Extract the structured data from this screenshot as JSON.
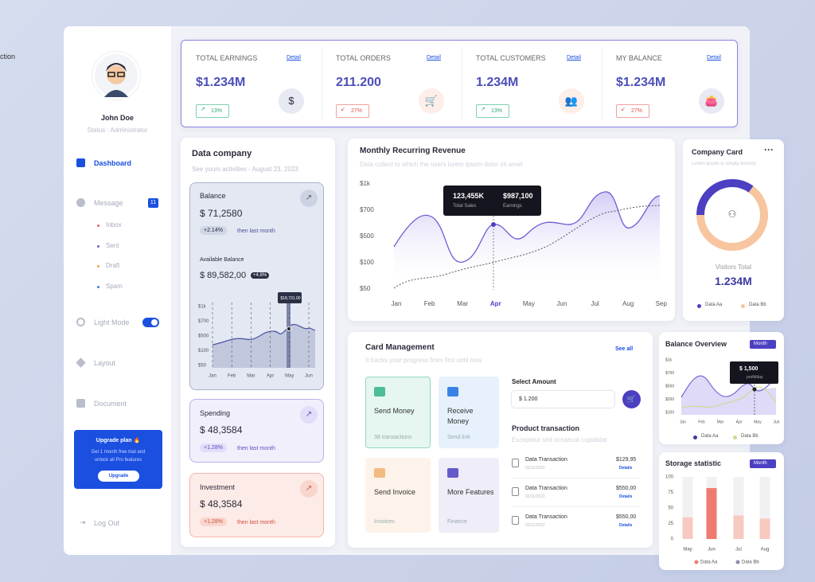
{
  "cut_text": "ction",
  "profile": {
    "name": "John Doe",
    "status": "Status : Administrator"
  },
  "nav": {
    "dashboard": "Dashboard",
    "message": "Message",
    "message_badge": "11",
    "sub": [
      "Inbox",
      "Sent",
      "Draft",
      "Spam"
    ],
    "light_mode": "Light Mode",
    "layout": "Layout",
    "document": "Document",
    "logout": "Log Out"
  },
  "upgrade": {
    "title": "Upgrade plan 🔥",
    "text": "Get 1 month free trial and unlock all Pro features",
    "button": "Upgrade"
  },
  "top_stats": [
    {
      "label": "TOTAL EARNINGS",
      "link": "Detail",
      "value": "$1.234M",
      "change": "13%"
    },
    {
      "label": "TOTAL ORDERS",
      "link": "Detail",
      "value": "211.200",
      "change": "27%"
    },
    {
      "label": "TOTAL CUSTOMERS",
      "link": "Detail",
      "value": "1.234M",
      "change": "13%"
    },
    {
      "label": "MY BALANCE",
      "link": "Detail",
      "value": "$1.234M",
      "change": "27%"
    }
  ],
  "data_company": {
    "title": "Data company",
    "subtitle": "See yours activities - August 23, 2023",
    "balance": {
      "label": "Balance",
      "value": "$ 71,2580",
      "change": "+2.14%",
      "note": "then last month",
      "available_label": "Available Balance",
      "available_value": "$ 89,582,00",
      "available_change": "+4.8%",
      "yticks": [
        "$1k",
        "$700",
        "$500",
        "$100",
        "$50"
      ],
      "months": [
        "Jan",
        "Feb",
        "Mar",
        "Apr",
        "May",
        "Jun"
      ],
      "tooltip": "$18,731.00"
    },
    "spending": {
      "label": "Spending",
      "value": "$ 48,3584",
      "change": "+1.28%",
      "note": "then last month"
    },
    "investment": {
      "label": "Investment",
      "value": "$ 48,3584",
      "change": "+1.28%",
      "note": "then last month"
    }
  },
  "mrr": {
    "title": "Monthly Recurring Revenue",
    "subtitle": "Data collect to which the users lorem ipsum dolor sit amet",
    "yticks": [
      "$1k",
      "$700",
      "$500",
      "$100",
      "$50"
    ],
    "months": [
      "Jan",
      "Feb",
      "Mar",
      "Apr",
      "May",
      "Jun",
      "Jul",
      "Aug",
      "Sep"
    ],
    "tooltip": {
      "sales": "123,455K",
      "sales_label": "Total Sales",
      "earnings": "$987,100",
      "earnings_label": "Earnings"
    }
  },
  "company_card": {
    "title": "Company Card",
    "subtitle": "Lorem ipsum is simply dummy",
    "visitors_label": "Visitors Total",
    "visitors": "1.234M",
    "legend": [
      "Data Aa",
      "Data Bb"
    ],
    "chart_data": {
      "type": "pie",
      "values": [
        35,
        65
      ],
      "colors": [
        "#4b3fc2",
        "#f7c59f"
      ]
    }
  },
  "card_management": {
    "title": "Card Management",
    "see_all": "See all",
    "subtitle": "It tracks your progress from first until now",
    "tiles": [
      {
        "title": "Send Money",
        "sub": "38 transactions"
      },
      {
        "title": "Receive Money",
        "sub": "Send link"
      },
      {
        "title": "Send Invoice",
        "sub": "Invoices"
      },
      {
        "title": "More Features",
        "sub": "Finance"
      }
    ],
    "select_label": "Select Amount",
    "amount": "$ 1.200",
    "product_title": "Product transaction",
    "product_sub": "Excepteur sint occaecat cupidatat",
    "transactions": [
      {
        "name": "Data Transaction",
        "date": "02/11/2022",
        "amount": "$129,95",
        "link": "Details"
      },
      {
        "name": "Data Transaction",
        "date": "02/11/2022",
        "amount": "$550,00",
        "link": "Details"
      },
      {
        "name": "Data Transaction",
        "date": "02/11/2022",
        "amount": "$550,00",
        "link": "Details"
      }
    ]
  },
  "balance_overview": {
    "title": "Balance Overview",
    "period": "Month",
    "yticks": [
      "$1k",
      "$700",
      "$500",
      "$200",
      "$100"
    ],
    "months": [
      "Jan",
      "Feb",
      "Mar",
      "Apr",
      "May",
      "Jun"
    ],
    "tooltip": "$ 1,500",
    "tooltip_sub": "profit/day",
    "legend": [
      "Data Aa",
      "Data Bb"
    ]
  },
  "storage": {
    "title": "Storage statistic",
    "period": "Month",
    "chart_data": {
      "type": "bar",
      "categories": [
        "May",
        "Jun",
        "Jul",
        "Aug"
      ],
      "ylim": [
        0,
        100
      ],
      "yticks": [
        0,
        25,
        50,
        75,
        100
      ],
      "series": [
        {
          "name": "Data Aa",
          "color": "#ef7b6e",
          "values": [
            35,
            82,
            38,
            33
          ]
        },
        {
          "name": "Data Bb",
          "color": "#f1f1f4",
          "values": [
            100,
            100,
            100,
            100
          ]
        }
      ]
    }
  }
}
